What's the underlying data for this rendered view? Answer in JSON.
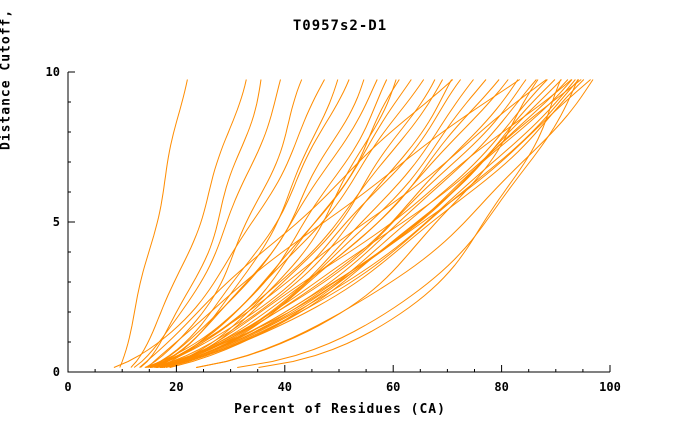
{
  "title": "T0957s2-D1",
  "chart_data": {
    "type": "line",
    "title": "T0957s2-D1",
    "xlabel": "Percent of Residues (CA)",
    "ylabel": "Distance Cutoff, A",
    "xlim": [
      0,
      100
    ],
    "ylim": [
      0,
      10
    ],
    "x_major_ticks": [
      0,
      20,
      40,
      60,
      80,
      100
    ],
    "x_minor_step": 5,
    "y_major_ticks": [
      0,
      5,
      10
    ],
    "y_minor_step": 1,
    "grid": false,
    "legend": "none",
    "line_color": "#FF8C00",
    "axis_color": "#000000",
    "y_start": 0.15,
    "y_end": 9.75,
    "wiggle_freq": 1.4,
    "series_note": "Each curve is a model accuracy curve: x(y) = x0 + (xend - x0) * (y/10)^p plus a small wiggle of amplitude amp and phase ph. x0 = percent of residues at cutoff ~0, xend = percent of residues at cutoff 10 A.",
    "series": [
      {
        "x0": 9,
        "xend": 22,
        "p": 0.85,
        "amp": 0.3,
        "ph": 0.5
      },
      {
        "x0": 10,
        "xend": 33,
        "p": 0.7,
        "amp": 0.4,
        "ph": 1.2
      },
      {
        "x0": 11,
        "xend": 36,
        "p": 0.6,
        "amp": 0.5,
        "ph": 2.1
      },
      {
        "x0": 10,
        "xend": 40,
        "p": 0.62,
        "amp": 0.4,
        "ph": 3.0
      },
      {
        "x0": 12,
        "xend": 44,
        "p": 0.58,
        "amp": 0.5,
        "ph": 4.2
      },
      {
        "x0": 4.5,
        "xend": 48,
        "p": 0.55,
        "amp": 0.4,
        "ph": 5.0
      },
      {
        "x0": 11,
        "xend": 52,
        "p": 0.6,
        "amp": 0.5,
        "ph": 0.8
      },
      {
        "x0": 10,
        "xend": 55,
        "p": 0.55,
        "amp": 0.6,
        "ph": 1.7
      },
      {
        "x0": 12,
        "xend": 58,
        "p": 0.65,
        "amp": 0.4,
        "ph": 2.6
      },
      {
        "x0": 13,
        "xend": 60,
        "p": 0.6,
        "amp": 0.5,
        "ph": 3.4
      },
      {
        "x0": 9,
        "xend": 62,
        "p": 0.52,
        "amp": 0.6,
        "ph": 4.9
      },
      {
        "x0": 10,
        "xend": 64,
        "p": 0.6,
        "amp": 0.4,
        "ph": 5.6
      },
      {
        "x0": 11,
        "xend": 66,
        "p": 0.63,
        "amp": 0.5,
        "ph": 0.3
      },
      {
        "x0": 12,
        "xend": 68,
        "p": 0.57,
        "amp": 0.6,
        "ph": 1.1
      },
      {
        "x0": 10,
        "xend": 70,
        "p": 0.6,
        "amp": 0.4,
        "ph": 2.0
      },
      {
        "x0": 9,
        "xend": 72,
        "p": 0.54,
        "amp": 0.5,
        "ph": 2.9
      },
      {
        "x0": 11,
        "xend": 74,
        "p": 0.62,
        "amp": 0.6,
        "ph": 3.8
      },
      {
        "x0": 13,
        "xend": 76,
        "p": 0.6,
        "amp": 0.4,
        "ph": 4.6
      },
      {
        "x0": 10,
        "xend": 78,
        "p": 0.57,
        "amp": 0.5,
        "ph": 5.4
      },
      {
        "x0": 12,
        "xend": 80,
        "p": 0.6,
        "amp": 0.6,
        "ph": 0.1
      },
      {
        "x0": 11,
        "xend": 82,
        "p": 0.63,
        "amp": 0.4,
        "ph": 1.0
      },
      {
        "x0": 9,
        "xend": 84,
        "p": 0.57,
        "amp": 0.5,
        "ph": 1.9
      },
      {
        "x0": 10,
        "xend": 86,
        "p": 0.6,
        "amp": 0.6,
        "ph": 2.7
      },
      {
        "x0": 12,
        "xend": 88,
        "p": 0.62,
        "amp": 0.4,
        "ph": 3.6
      },
      {
        "x0": 11,
        "xend": 90,
        "p": 0.6,
        "amp": 0.5,
        "ph": 4.4
      },
      {
        "x0": 10,
        "xend": 91,
        "p": 0.57,
        "amp": 0.6,
        "ph": 5.2
      },
      {
        "x0": 13,
        "xend": 92,
        "p": 0.62,
        "amp": 0.4,
        "ph": 6.0
      },
      {
        "x0": 9,
        "xend": 93,
        "p": 0.6,
        "amp": 0.5,
        "ph": 0.6
      },
      {
        "x0": 11,
        "xend": 94,
        "p": 0.64,
        "amp": 0.6,
        "ph": 1.5
      },
      {
        "x0": 10,
        "xend": 95,
        "p": 0.6,
        "amp": 0.4,
        "ph": 2.3
      },
      {
        "x0": 12,
        "xend": 96,
        "p": 0.62,
        "amp": 0.5,
        "ph": 3.2
      },
      {
        "x0": 11,
        "xend": 97,
        "p": 0.6,
        "amp": 0.6,
        "ph": 4.1
      },
      {
        "x0": 10,
        "xend": 98,
        "p": 0.66,
        "amp": 0.4,
        "ph": 4.9
      },
      {
        "x0": 14,
        "xend": 96,
        "p": 0.78,
        "amp": 0.5,
        "ph": 5.8
      },
      {
        "x0": 16,
        "xend": 94,
        "p": 0.85,
        "amp": 0.6,
        "ph": 0.9
      },
      {
        "x0": 8,
        "xend": 61,
        "p": 0.45,
        "amp": 0.5,
        "ph": 1.8
      },
      {
        "x0": 12,
        "xend": 95,
        "p": 0.35,
        "amp": 0.4,
        "ph": 2.6
      },
      {
        "x0": 13,
        "xend": 92,
        "p": 0.3,
        "amp": 0.5,
        "ph": 3.5
      },
      {
        "x0": 11,
        "xend": 88,
        "p": 0.42,
        "amp": 0.6,
        "ph": 4.3
      },
      {
        "x0": 15,
        "xend": 90,
        "p": 0.9,
        "amp": 0.5,
        "ph": 5.1
      },
      {
        "x0": 14,
        "xend": 85,
        "p": 1.1,
        "amp": 0.4,
        "ph": 6.0
      },
      {
        "x0": 12,
        "xend": 72,
        "p": 1.0,
        "amp": 0.5,
        "ph": 0.4
      },
      {
        "x0": 10,
        "xend": 50,
        "p": 0.5,
        "amp": 0.4,
        "ph": 1.3
      },
      {
        "x0": 13,
        "xend": 98,
        "p": 0.5,
        "amp": 0.5,
        "ph": 2.2
      }
    ]
  }
}
